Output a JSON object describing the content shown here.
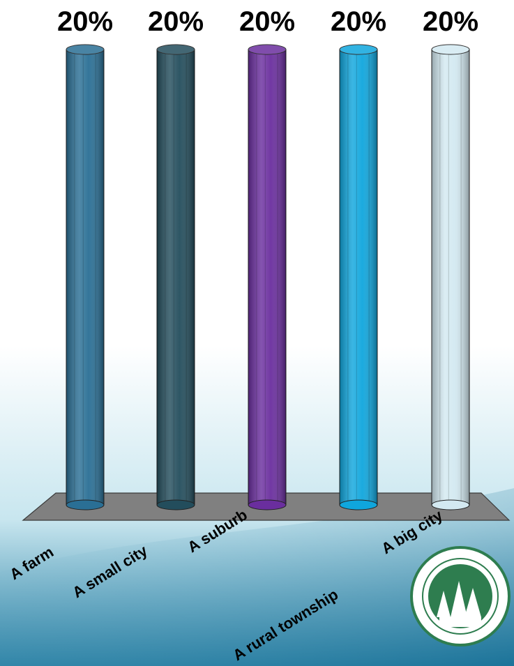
{
  "chart_data": {
    "type": "bar",
    "categories": [
      "A farm",
      "A small city",
      "A suburb",
      "A rural township",
      "A big city"
    ],
    "values": [
      20,
      20,
      20,
      20,
      20
    ],
    "value_labels": [
      "20%",
      "20%",
      "20%",
      "20%",
      "20%"
    ],
    "colors": [
      "#2a6f95",
      "#234d5c",
      "#6a2e9e",
      "#0fa6dd",
      "#d3e9f1"
    ],
    "ylim": [
      0,
      20
    ],
    "grid": false,
    "legend": "none"
  },
  "background": {
    "colors": [
      "#ffffff",
      "#9fd0e1",
      "#1a6f95"
    ]
  },
  "logo": {
    "icon": "minnesota-seal-logo"
  }
}
